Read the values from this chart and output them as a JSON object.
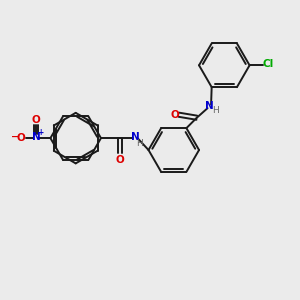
{
  "background_color": "#ebebeb",
  "bond_color": "#1a1a1a",
  "O_color": "#dd0000",
  "N_color": "#0000cc",
  "Cl_color": "#00aa00",
  "H_color": "#666666",
  "figsize": [
    3.0,
    3.0
  ],
  "dpi": 100,
  "xlim": [
    0,
    10
  ],
  "ylim": [
    0,
    10
  ]
}
